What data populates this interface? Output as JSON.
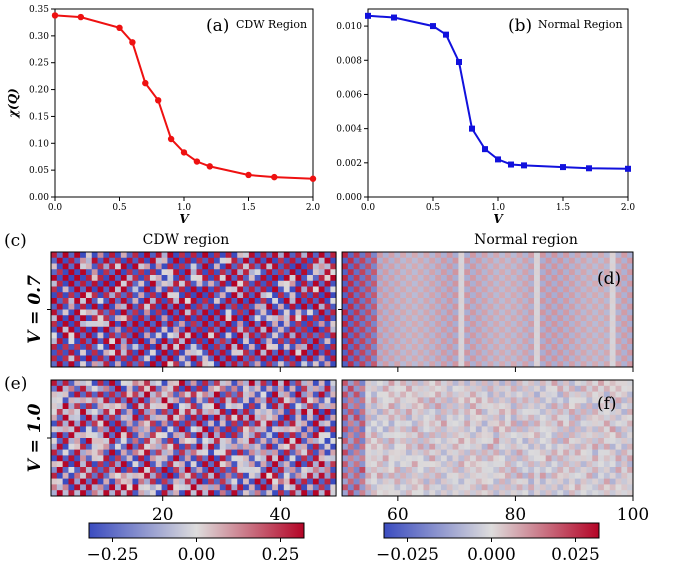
{
  "chart_data": [
    {
      "panel": "(a)",
      "type": "line",
      "annotation": "CDW Region",
      "xlabel": "V",
      "ylabel": "χ(Q)",
      "xlim": [
        0.0,
        2.0
      ],
      "ylim": [
        0.0,
        0.35
      ],
      "xticks": [
        "0.0",
        "0.5",
        "1.0",
        "1.5",
        "2.0"
      ],
      "yticks": [
        "0.00",
        "0.05",
        "0.10",
        "0.15",
        "0.20",
        "0.25",
        "0.30",
        "0.35"
      ],
      "color": "#ee1111",
      "marker": "circle",
      "x": [
        0.0,
        0.2,
        0.5,
        0.6,
        0.7,
        0.8,
        0.9,
        1.0,
        1.1,
        1.2,
        1.5,
        1.7,
        2.0
      ],
      "y": [
        0.338,
        0.335,
        0.315,
        0.288,
        0.212,
        0.18,
        0.108,
        0.083,
        0.066,
        0.057,
        0.041,
        0.037,
        0.034
      ]
    },
    {
      "panel": "(b)",
      "type": "line",
      "annotation": "Normal Region",
      "xlabel": "V",
      "xlim": [
        0.0,
        2.0
      ],
      "ylim": [
        0.0,
        0.011
      ],
      "xticks": [
        "0.0",
        "0.5",
        "1.0",
        "1.5",
        "2.0"
      ],
      "yticks": [
        "0.000",
        "0.002",
        "0.004",
        "0.006",
        "0.008",
        "0.010"
      ],
      "color": "#1111dd",
      "marker": "square",
      "x": [
        0.0,
        0.2,
        0.5,
        0.6,
        0.7,
        0.8,
        0.9,
        1.0,
        1.1,
        1.2,
        1.5,
        1.7,
        2.0
      ],
      "y": [
        0.0106,
        0.0105,
        0.01,
        0.0095,
        0.0079,
        0.004,
        0.0028,
        0.0022,
        0.0019,
        0.00185,
        0.00175,
        0.00168,
        0.00165
      ]
    },
    {
      "type": "heatmap",
      "column_titles": [
        "CDW region",
        "Normal region"
      ],
      "row_labels": [
        "V = 0.7",
        "V = 1.0"
      ],
      "panels": [
        "(c)",
        "(d)",
        "(e)",
        "(f)"
      ],
      "xticks": [
        "20",
        "40",
        "60",
        "80",
        "100"
      ],
      "xtick_values": [
        20,
        40,
        60,
        80,
        100
      ],
      "colorbar_left": {
        "ticks": [
          "−0.25",
          "0.00",
          "0.25"
        ],
        "range": [
          -0.32,
          0.32
        ]
      },
      "colorbar_right": {
        "ticks": [
          "−0.025",
          "0.000",
          "0.025"
        ],
        "range": [
          -0.032,
          0.032
        ]
      },
      "colormap": [
        "#3b4cc0",
        "#dddcdc",
        "#b40426"
      ]
    }
  ]
}
